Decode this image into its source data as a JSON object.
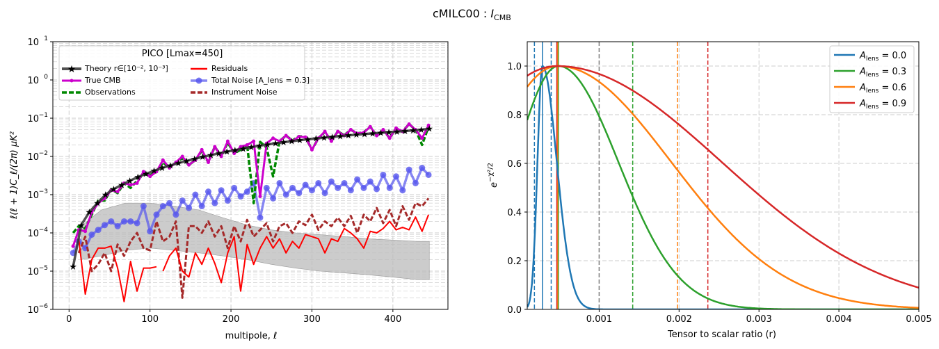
{
  "figure": {
    "suptitle_main": "cMILC00 : ",
    "suptitle_italic": "I",
    "suptitle_sub": "CMB"
  },
  "chart_data": [
    {
      "type": "line",
      "yscale": "log",
      "xlabel": "multipole, ℓ",
      "ylabel": "ℓ(ℓ + 1)C_ℓ/(2π)  μK²",
      "xlim": [
        -20,
        468
      ],
      "ylim": [
        1e-06,
        10
      ],
      "xticks": [
        0,
        100,
        200,
        300,
        400
      ],
      "xtick_labels": [
        "0",
        "100",
        "200",
        "300",
        "400"
      ],
      "ytick_labels": [
        {
          "value": 1e-06,
          "mant": "10",
          "exp": "−6"
        },
        {
          "value": 1e-05,
          "mant": "10",
          "exp": "−5"
        },
        {
          "value": 0.0001,
          "mant": "10",
          "exp": "−4"
        },
        {
          "value": 0.001,
          "mant": "10",
          "exp": "−3"
        },
        {
          "value": 0.01,
          "mant": "10",
          "exp": "−2"
        },
        {
          "value": 0.1,
          "mant": "10",
          "exp": "−1"
        },
        {
          "value": 1,
          "mant": "10",
          "exp": "0"
        },
        {
          "value": 10,
          "mant": "10",
          "exp": "1"
        }
      ],
      "grid": true,
      "legend_position": "upper-left",
      "legend_title": "PICO [Lmax=450]",
      "legend": [
        {
          "label": "Theory r∈[10⁻², 10⁻³]",
          "color": "#333333",
          "style": "solid-star"
        },
        {
          "label": "Residuals",
          "color": "#ff0000",
          "style": "solid"
        },
        {
          "label": "True CMB",
          "color": "#cc00cc",
          "style": "solid-dot"
        },
        {
          "label": "Total Noise [A_lens = 0.3]",
          "color": "#5555ee",
          "style": "solid-circle"
        },
        {
          "label": "Observations",
          "color": "#008800",
          "style": "dashed"
        },
        {
          "label": "Instrument Noise",
          "color": "#a52a2a",
          "style": "dashed"
        }
      ],
      "series": [
        {
          "name": "Theory",
          "color": "#333333",
          "x": [
            5,
            15,
            25,
            35,
            45,
            55,
            65,
            75,
            85,
            95,
            105,
            115,
            125,
            135,
            145,
            155,
            165,
            175,
            185,
            195,
            205,
            215,
            225,
            235,
            245,
            255,
            265,
            275,
            285,
            295,
            305,
            315,
            325,
            335,
            345,
            355,
            365,
            375,
            385,
            395,
            405,
            415,
            425,
            435,
            445
          ],
          "y": [
            1.3e-05,
            0.00016,
            0.00035,
            0.0006,
            0.001,
            0.0014,
            0.0018,
            0.0023,
            0.0029,
            0.0035,
            0.0042,
            0.005,
            0.0058,
            0.0067,
            0.0076,
            0.0086,
            0.0097,
            0.0108,
            0.012,
            0.0133,
            0.0147,
            0.016,
            0.0175,
            0.019,
            0.0205,
            0.022,
            0.0235,
            0.025,
            0.0265,
            0.028,
            0.0295,
            0.031,
            0.0325,
            0.034,
            0.0355,
            0.037,
            0.0385,
            0.04,
            0.0415,
            0.043,
            0.0445,
            0.046,
            0.048,
            0.05,
            0.053
          ]
        },
        {
          "name": "True CMB",
          "color": "#cc00cc",
          "x": [
            5,
            12,
            20,
            28,
            36,
            44,
            52,
            60,
            68,
            76,
            84,
            92,
            100,
            108,
            116,
            124,
            132,
            140,
            148,
            156,
            164,
            172,
            180,
            188,
            196,
            204,
            212,
            220,
            228,
            236,
            244,
            252,
            260,
            268,
            276,
            284,
            292,
            300,
            308,
            316,
            324,
            332,
            340,
            348,
            356,
            364,
            372,
            380,
            388,
            396,
            404,
            412,
            420,
            428,
            436,
            444
          ],
          "y": [
            4.5e-05,
            0.00012,
            0.00011,
            0.00035,
            0.0006,
            0.0008,
            0.0013,
            0.0012,
            0.002,
            0.0018,
            0.002,
            0.004,
            0.003,
            0.004,
            0.008,
            0.005,
            0.007,
            0.01,
            0.006,
            0.008,
            0.015,
            0.007,
            0.018,
            0.01,
            0.025,
            0.012,
            0.018,
            0.02,
            0.025,
            0.0009,
            0.022,
            0.03,
            0.025,
            0.035,
            0.025,
            0.033,
            0.032,
            0.015,
            0.03,
            0.045,
            0.025,
            0.045,
            0.035,
            0.05,
            0.04,
            0.042,
            0.06,
            0.035,
            0.05,
            0.03,
            0.055,
            0.045,
            0.07,
            0.05,
            0.03,
            0.065
          ]
        },
        {
          "name": "Observations",
          "color": "#008800",
          "x": [
            5,
            12,
            20,
            28,
            36,
            44,
            52,
            60,
            68,
            76,
            84,
            92,
            100,
            108,
            116,
            124,
            132,
            140,
            148,
            156,
            164,
            172,
            180,
            188,
            196,
            204,
            212,
            220,
            228,
            236,
            244,
            252,
            260,
            268,
            276,
            284,
            292,
            300,
            308,
            316,
            324,
            332,
            340,
            348,
            356,
            364,
            372,
            380,
            388,
            396,
            404,
            412,
            420,
            428,
            436,
            444
          ],
          "y": [
            0.0001,
            0.00015,
            0.00013,
            0.0003,
            0.0007,
            0.0007,
            0.0014,
            0.0011,
            0.002,
            0.0015,
            0.0023,
            0.0035,
            0.0032,
            0.004,
            0.007,
            0.005,
            0.007,
            0.009,
            0.006,
            0.008,
            0.014,
            0.007,
            0.018,
            0.01,
            0.023,
            0.012,
            0.015,
            0.02,
            0.0006,
            0.024,
            0.017,
            0.003,
            0.025,
            0.035,
            0.026,
            0.034,
            0.032,
            0.015,
            0.03,
            0.044,
            0.025,
            0.045,
            0.036,
            0.05,
            0.04,
            0.043,
            0.06,
            0.035,
            0.05,
            0.03,
            0.055,
            0.045,
            0.07,
            0.05,
            0.02,
            0.06
          ]
        },
        {
          "name": "Total Noise",
          "color": "#5555ee",
          "x": [
            5,
            12,
            20,
            28,
            36,
            44,
            52,
            60,
            68,
            76,
            84,
            92,
            100,
            108,
            116,
            124,
            132,
            140,
            148,
            156,
            164,
            172,
            180,
            188,
            196,
            204,
            212,
            220,
            228,
            236,
            244,
            252,
            260,
            268,
            276,
            284,
            292,
            300,
            308,
            316,
            324,
            332,
            340,
            348,
            356,
            364,
            372,
            380,
            388,
            396,
            404,
            412,
            420,
            428,
            436,
            444
          ],
          "y": [
            3e-05,
            6e-05,
            4e-05,
            9e-05,
            0.00012,
            0.00016,
            0.0002,
            0.00015,
            0.0002,
            0.0002,
            0.00018,
            0.0005,
            0.00011,
            0.0003,
            0.0005,
            0.0006,
            0.0003,
            0.0007,
            0.00045,
            0.001,
            0.0005,
            0.0012,
            0.0006,
            0.0013,
            0.0007,
            0.0015,
            0.0009,
            0.0012,
            0.002,
            0.00025,
            0.0015,
            0.0008,
            0.002,
            0.001,
            0.0015,
            0.0011,
            0.0018,
            0.0013,
            0.002,
            0.0011,
            0.0022,
            0.0015,
            0.002,
            0.0013,
            0.0025,
            0.0015,
            0.0022,
            0.0014,
            0.0033,
            0.0015,
            0.003,
            0.0013,
            0.0045,
            0.002,
            0.005,
            0.0033
          ]
        },
        {
          "name": "Residuals",
          "color": "#ff0000",
          "x": [
            12,
            20,
            28,
            36,
            44,
            52,
            60,
            68,
            76,
            84,
            92,
            100,
            108,
            null,
            116,
            124,
            132,
            140,
            148,
            156,
            164,
            172,
            180,
            188,
            196,
            204,
            212,
            220,
            228,
            236,
            244,
            252,
            260,
            268,
            276,
            284,
            292,
            300,
            308,
            316,
            324,
            332,
            340,
            348,
            356,
            364,
            372,
            380,
            388,
            396,
            404,
            412,
            420,
            428,
            436,
            444
          ],
          "y": [
            7e-05,
            2.5e-06,
            2e-05,
            4e-05,
            4e-05,
            4.5e-05,
            1.2e-05,
            1.6e-06,
            1.8e-05,
            3e-06,
            1.2e-05,
            1.2e-05,
            1.3e-05,
            null,
            1e-05,
            2.5e-05,
            4e-05,
            1e-05,
            7e-06,
            3e-05,
            1.5e-05,
            4e-05,
            1.6e-05,
            5e-06,
            3e-05,
            8e-05,
            3e-06,
            5e-05,
            1.5e-05,
            4e-05,
            8e-05,
            4e-05,
            7e-05,
            3e-05,
            6e-05,
            4e-05,
            9e-05,
            8e-05,
            7e-05,
            3e-05,
            7e-05,
            6e-05,
            0.00013,
            0.0001,
            7e-05,
            4e-05,
            0.00011,
            0.0001,
            0.00013,
            0.0002,
            0.00012,
            0.00014,
            0.00012,
            0.00026,
            0.00011,
            0.0003
          ]
        },
        {
          "name": "Instrument Noise",
          "color": "#a52a2a",
          "x": [
            12,
            20,
            28,
            36,
            44,
            52,
            60,
            68,
            76,
            84,
            92,
            100,
            108,
            116,
            124,
            132,
            140,
            148,
            156,
            164,
            172,
            180,
            188,
            196,
            204,
            212,
            220,
            228,
            236,
            244,
            252,
            260,
            268,
            276,
            284,
            292,
            300,
            308,
            316,
            324,
            332,
            340,
            348,
            356,
            364,
            372,
            380,
            388,
            396,
            404,
            412,
            420,
            428,
            436,
            444
          ],
          "y": [
            3e-05,
            8e-05,
            1e-05,
            1.5e-05,
            3e-05,
            1e-05,
            5e-05,
            2.5e-05,
            6e-05,
            0.0001,
            4e-05,
            3.5e-05,
            0.0002,
            6e-05,
            8e-05,
            0.0002,
            2e-06,
            0.00015,
            0.00015,
            0.0001,
            0.0002,
            8e-05,
            0.00015,
            4e-05,
            0.00015,
            6e-05,
            0.00022,
            8e-05,
            0.00012,
            0.00018,
            6e-05,
            0.00015,
            0.00018,
            0.0001,
            0.0002,
            0.00016,
            0.0003,
            0.00012,
            0.0002,
            0.00015,
            0.00025,
            0.00015,
            0.00028,
            0.0001,
            0.0003,
            0.0002,
            0.00045,
            0.00018,
            0.0004,
            0.00015,
            0.0005,
            0.00022,
            0.0006,
            0.0005,
            0.0008
          ]
        }
      ],
      "band": {
        "color": "#bbbbbb",
        "x": [
          15,
          40,
          70,
          100,
          130,
          160,
          190,
          220,
          250,
          280,
          310,
          340,
          370,
          400,
          430,
          445
        ],
        "upper": [
          0.00015,
          0.0004,
          0.0006,
          0.0006,
          0.0005,
          0.0004,
          0.00025,
          0.00016,
          0.00012,
          0.0001,
          9e-05,
          8e-05,
          7e-05,
          6.5e-05,
          6e-05,
          6e-05
        ],
        "lower": [
          2e-05,
          2.5e-05,
          3.5e-05,
          4e-05,
          3.5e-05,
          3e-05,
          2.5e-05,
          2e-05,
          1.5e-05,
          1.2e-05,
          1e-05,
          9e-06,
          8e-06,
          7e-06,
          6e-06,
          6e-06
        ]
      }
    },
    {
      "type": "line",
      "xlabel": "Tensor to scalar ratio (r)",
      "ylabel": "e^{−χ²/2}",
      "xlim": [
        0.0001,
        0.005
      ],
      "ylim": [
        0,
        1.1
      ],
      "xticks": [
        0.001,
        0.002,
        0.003,
        0.004,
        0.005
      ],
      "xtick_labels": [
        "0.001",
        "0.002",
        "0.003",
        "0.004",
        "0.005"
      ],
      "yticks": [
        0,
        0.2,
        0.4,
        0.6,
        0.8,
        1.0
      ],
      "ytick_labels": [
        "0.0",
        "0.2",
        "0.4",
        "0.6",
        "0.8",
        "1.0"
      ],
      "grid": true,
      "legend_position": "upper-right",
      "series": [
        {
          "name": "A_lens = 0.0",
          "legend_main": "A",
          "legend_sub": "lens",
          "legend_eq": " = 0.0",
          "color": "#1f77b4",
          "peak": 0.00029,
          "sigma_left": 6.2e-05,
          "sigma_right": 0.00018,
          "vlines_solid": [
            0.00029
          ],
          "vlines_dashed": [
            0.00019,
            0.0004
          ]
        },
        {
          "name": "A_lens = 0.3",
          "legend_main": "A",
          "legend_sub": "lens",
          "legend_eq": " = 0.3",
          "color": "#2ca02c",
          "peak": 0.00049,
          "sigma_left": 0.00055,
          "sigma_right": 0.00075,
          "vlines_solid": [
            0.00049
          ],
          "vlines_dashed": [
            0.00142
          ]
        },
        {
          "name": "A_lens = 0.6",
          "legend_main": "A",
          "legend_sub": "lens",
          "legend_eq": " = 0.6",
          "color": "#ff7f0e",
          "peak": 0.00048,
          "sigma_left": 0.0009,
          "sigma_right": 0.00142,
          "vlines_solid": [
            0.00048
          ],
          "vlines_dashed": [
            0.00198
          ]
        },
        {
          "name": "A_lens = 0.9",
          "legend_main": "A",
          "legend_sub": "lens",
          "legend_eq": " = 0.9",
          "color": "#d62728",
          "peak": 0.00047,
          "sigma_left": 0.0013,
          "sigma_right": 0.00206,
          "vlines_solid": [
            0.00047
          ],
          "vlines_dashed": [
            0.00236
          ]
        }
      ],
      "reference_lines": [
        {
          "x": 0.001,
          "color": "#7f7f7f",
          "style": "dashed"
        }
      ]
    }
  ]
}
